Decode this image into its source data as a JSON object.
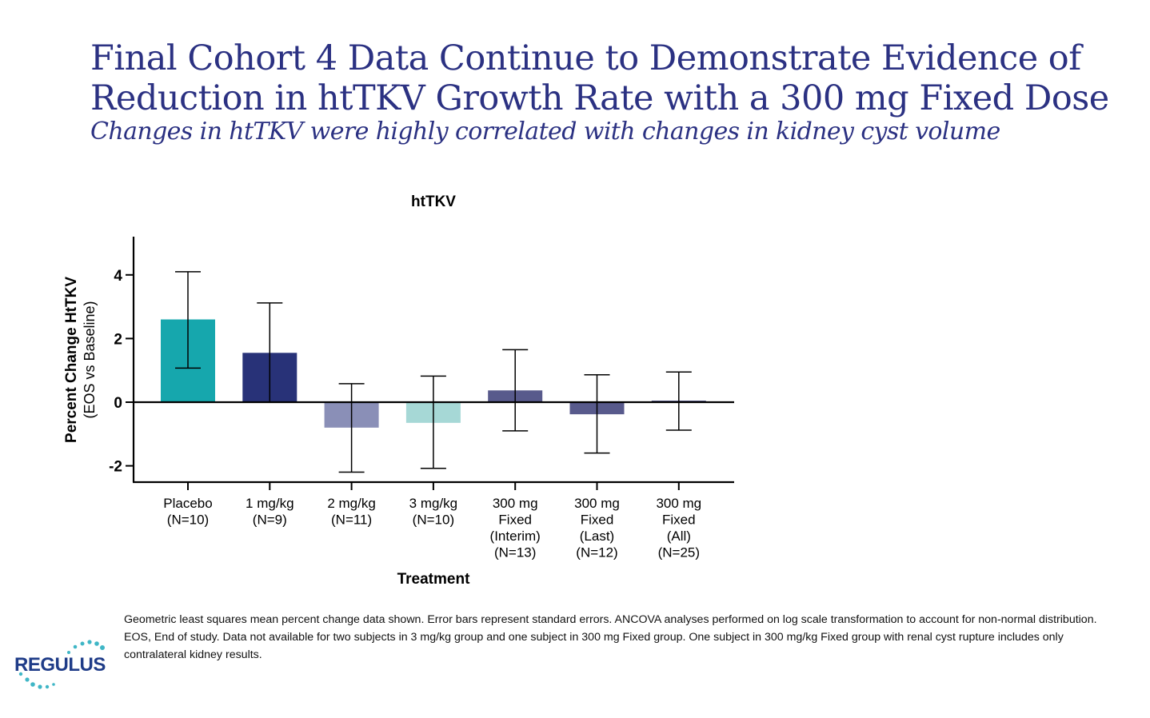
{
  "slide": {
    "title_line1": "Final Cohort 4 Data Continue to Demonstrate Evidence of",
    "title_line2": "Reduction in htTKV Growth Rate with a 300 mg Fixed Dose",
    "subtitle": "Changes in htTKV were highly correlated with changes in kidney cyst volume",
    "footnote": "Geometric least squares mean percent change data shown. Error bars represent standard errors. ANCOVA analyses performed on log scale transformation to account for non-normal distribution. EOS, End of study. Data not available for two subjects in 3 mg/kg group and one subject in 300 mg Fixed group. One subject in 300 mg/kg Fixed group with renal cyst rupture includes only contralateral kidney results.",
    "logo_text": "REGULUS",
    "brand_colors": {
      "title": "#2b3182",
      "logo": "#1f3c88",
      "logo_dots": "#3fb6c6"
    }
  },
  "chart_data": {
    "type": "bar",
    "title": "htTKV",
    "xlabel": "Treatment",
    "ylabel": "Percent Change HtTKV",
    "ylabel_sub": "(EOS vs Baseline)",
    "ylim": [
      -2.5,
      5.2
    ],
    "yticks": [
      -2,
      0,
      2,
      4
    ],
    "grid": false,
    "legend": "none",
    "categories": [
      [
        "Placebo",
        "(N=10)"
      ],
      [
        "1 mg/kg",
        "(N=9)"
      ],
      [
        "2 mg/kg",
        "(N=11)"
      ],
      [
        "3 mg/kg",
        "(N=10)"
      ],
      [
        "300 mg",
        "Fixed",
        "(Interim)",
        "(N=13)"
      ],
      [
        "300 mg",
        "Fixed",
        "(Last)",
        "(N=12)"
      ],
      [
        "300 mg",
        "Fixed",
        "(All)",
        "(N=25)"
      ]
    ],
    "values": [
      2.6,
      1.55,
      -0.8,
      -0.65,
      0.37,
      -0.38,
      0.05
    ],
    "error_low": [
      1.07,
      0.0,
      -2.2,
      -2.08,
      -0.9,
      -1.6,
      -0.88
    ],
    "error_high": [
      4.1,
      3.12,
      0.58,
      0.82,
      1.65,
      0.86,
      0.95
    ],
    "colors": [
      "#16a7ad",
      "#283278",
      "#8a8fb7",
      "#a6d8d6",
      "#585a8c",
      "#585a8c",
      "#585a8c"
    ]
  }
}
